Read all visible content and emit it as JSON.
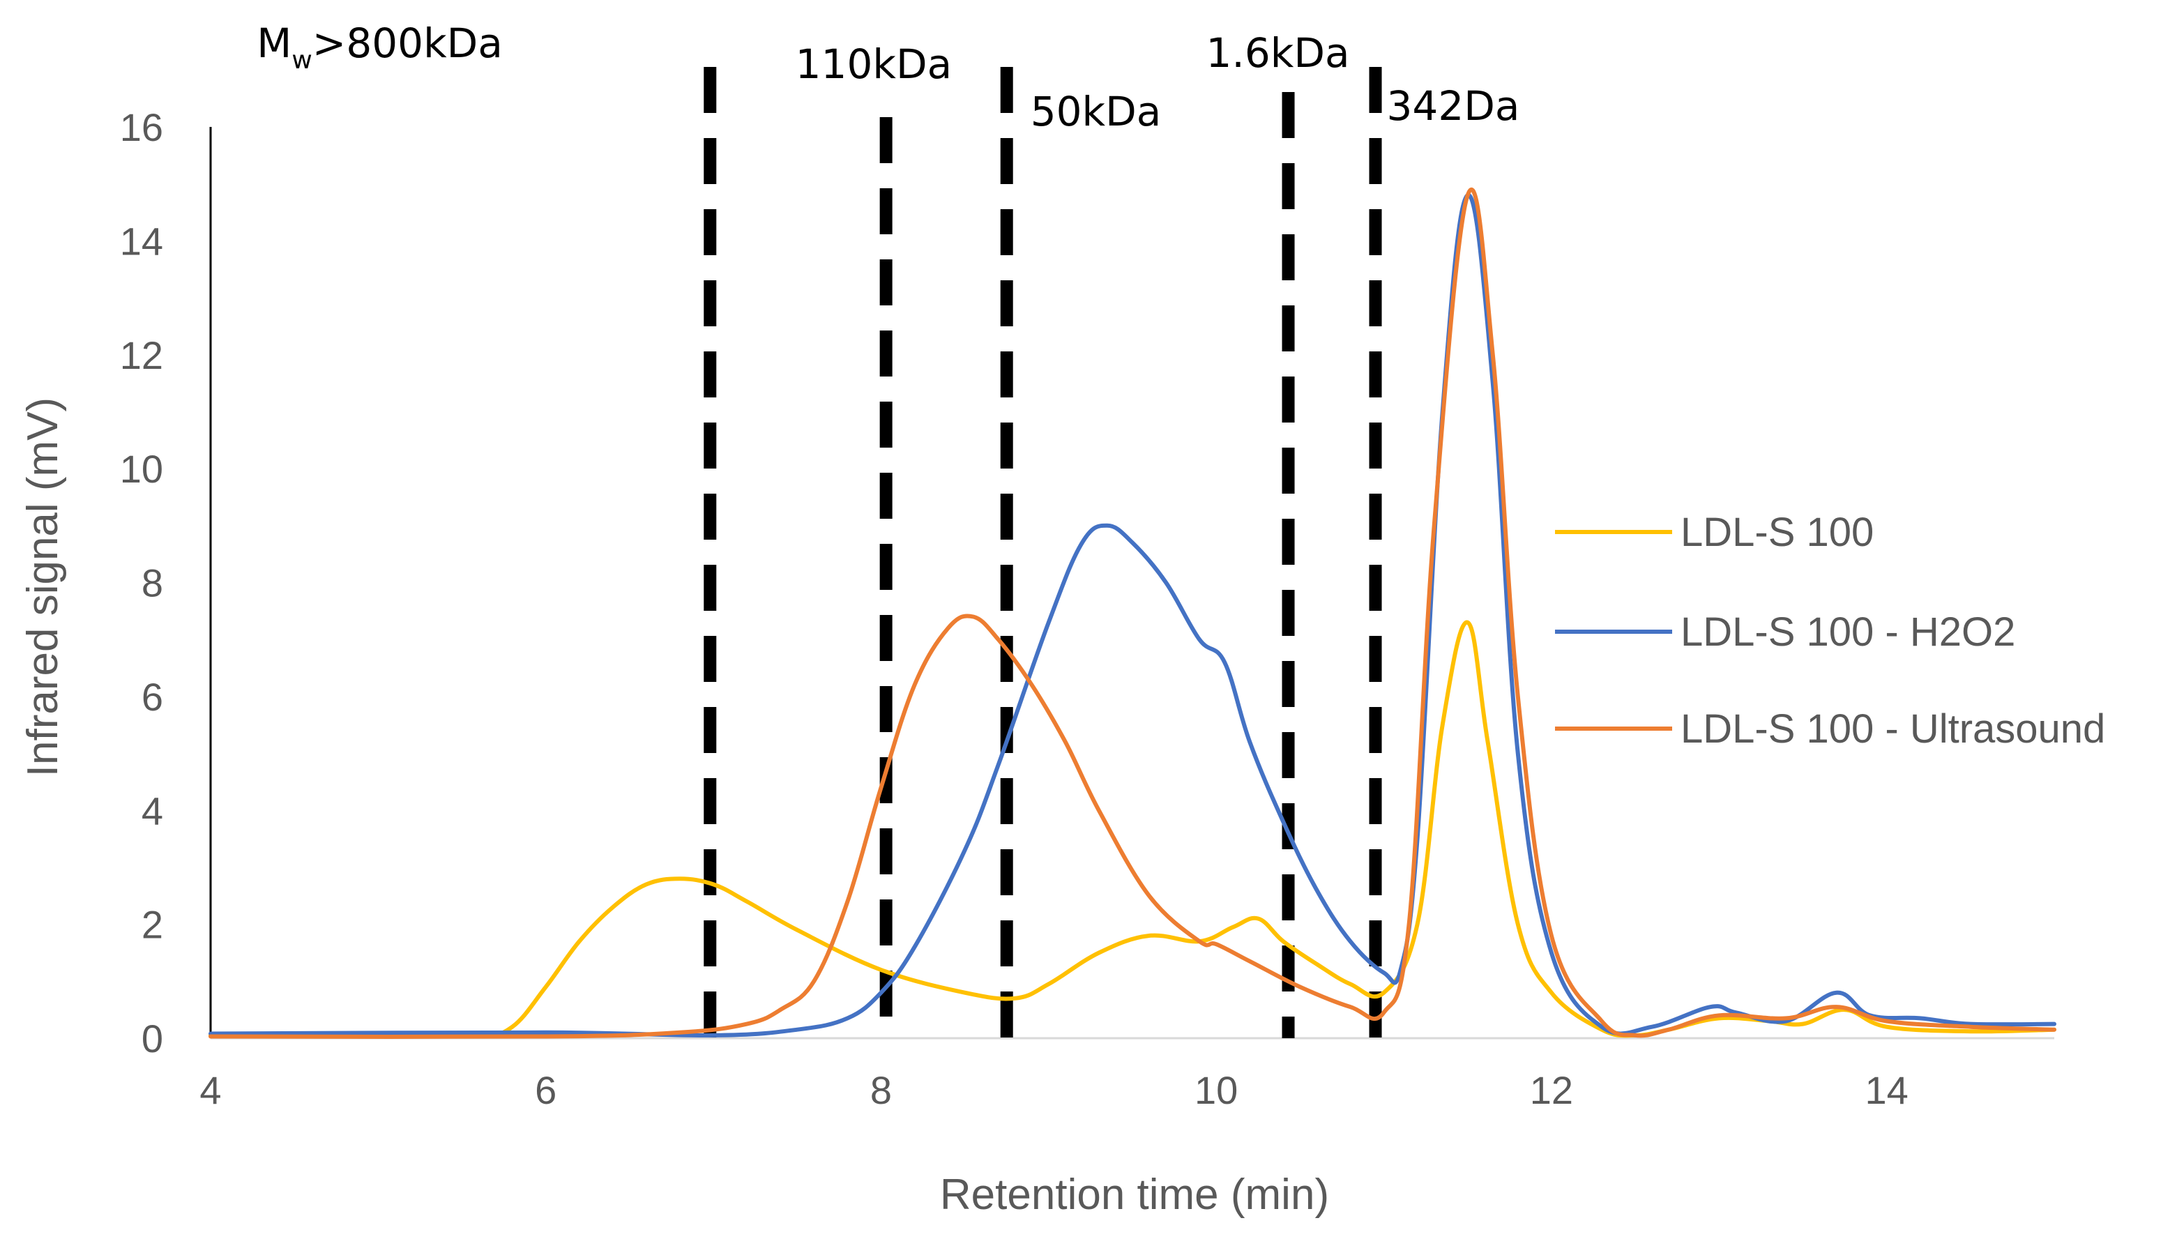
{
  "chart_data": {
    "type": "line",
    "title": "",
    "xlabel": "Retention time (min)",
    "ylabel": "Infrared signal (mV)",
    "xlim": [
      4,
      15
    ],
    "ylim": [
      0,
      16
    ],
    "xticks": [
      4,
      6,
      8,
      10,
      12,
      14
    ],
    "yticks": [
      0,
      2,
      4,
      6,
      8,
      10,
      12,
      14,
      16
    ],
    "grid": false,
    "legend_position": "right",
    "series": [
      {
        "name": "LDL-S 100",
        "color": "#FFC000",
        "x": [
          4.0,
          5.0,
          5.6,
          5.8,
          6.0,
          6.2,
          6.4,
          6.6,
          6.8,
          7.0,
          7.2,
          7.5,
          8.0,
          8.5,
          8.8,
          9.0,
          9.3,
          9.6,
          9.9,
          10.1,
          10.25,
          10.4,
          10.6,
          10.8,
          11.0,
          11.2,
          11.35,
          11.5,
          11.62,
          11.8,
          12.0,
          12.3,
          12.5,
          12.7,
          13.0,
          13.3,
          13.5,
          13.75,
          14.0,
          14.5,
          15.0
        ],
        "y": [
          0.05,
          0.05,
          0.06,
          0.2,
          0.9,
          1.7,
          2.3,
          2.7,
          2.8,
          2.7,
          2.4,
          1.9,
          1.2,
          0.8,
          0.7,
          0.95,
          1.5,
          1.8,
          1.7,
          1.95,
          2.1,
          1.7,
          1.3,
          0.95,
          0.8,
          2.0,
          5.5,
          7.3,
          5.2,
          2.0,
          0.8,
          0.15,
          0.05,
          0.15,
          0.35,
          0.3,
          0.25,
          0.5,
          0.2,
          0.12,
          0.15
        ]
      },
      {
        "name": "LDL-S 100 - H2O2",
        "color": "#4472C4",
        "x": [
          4.0,
          6.0,
          7.0,
          7.5,
          7.8,
          8.0,
          8.2,
          8.5,
          8.7,
          9.0,
          9.2,
          9.35,
          9.5,
          9.7,
          9.9,
          10.05,
          10.2,
          10.4,
          10.6,
          10.8,
          11.0,
          11.1,
          11.2,
          11.35,
          11.5,
          11.65,
          11.8,
          12.0,
          12.3,
          12.6,
          12.95,
          13.1,
          13.4,
          13.7,
          13.9,
          14.2,
          14.5,
          15.0
        ],
        "y": [
          0.08,
          0.1,
          0.05,
          0.15,
          0.35,
          0.8,
          1.6,
          3.3,
          4.8,
          7.3,
          8.7,
          9.0,
          8.7,
          8.0,
          7.0,
          6.6,
          5.2,
          3.8,
          2.6,
          1.7,
          1.15,
          1.2,
          3.5,
          11.0,
          14.8,
          11.5,
          5.0,
          1.5,
          0.2,
          0.2,
          0.55,
          0.45,
          0.3,
          0.8,
          0.4,
          0.35,
          0.25,
          0.25
        ]
      },
      {
        "name": "LDL-S 100 - Ultrasound",
        "color": "#ED7D31",
        "x": [
          4.0,
          6.0,
          6.8,
          7.2,
          7.4,
          7.6,
          7.8,
          8.0,
          8.2,
          8.4,
          8.55,
          8.7,
          8.9,
          9.1,
          9.3,
          9.6,
          9.9,
          10.0,
          10.2,
          10.5,
          10.8,
          11.0,
          11.15,
          11.3,
          11.5,
          11.65,
          11.8,
          12.0,
          12.3,
          12.5,
          12.7,
          13.0,
          13.4,
          13.7,
          14.0,
          14.5,
          15.0
        ],
        "y": [
          0.03,
          0.03,
          0.1,
          0.25,
          0.5,
          1.0,
          2.4,
          4.4,
          6.2,
          7.2,
          7.4,
          7.0,
          6.2,
          5.2,
          4.0,
          2.5,
          1.7,
          1.65,
          1.35,
          0.9,
          0.55,
          0.45,
          2.0,
          9.0,
          14.8,
          12.0,
          6.0,
          1.8,
          0.3,
          0.05,
          0.15,
          0.4,
          0.35,
          0.55,
          0.3,
          0.2,
          0.15
        ]
      }
    ],
    "markers": [
      {
        "x": 6.98,
        "label": "800kDa",
        "label_prefix": "M",
        "label_sub": "w",
        "label_relation": ">"
      },
      {
        "x": 8.03,
        "label": "110kDa"
      },
      {
        "x": 8.75,
        "label": "50kDa"
      },
      {
        "x": 10.43,
        "label": "1.6kDa"
      },
      {
        "x": 10.95,
        "label": "342Da"
      }
    ]
  }
}
